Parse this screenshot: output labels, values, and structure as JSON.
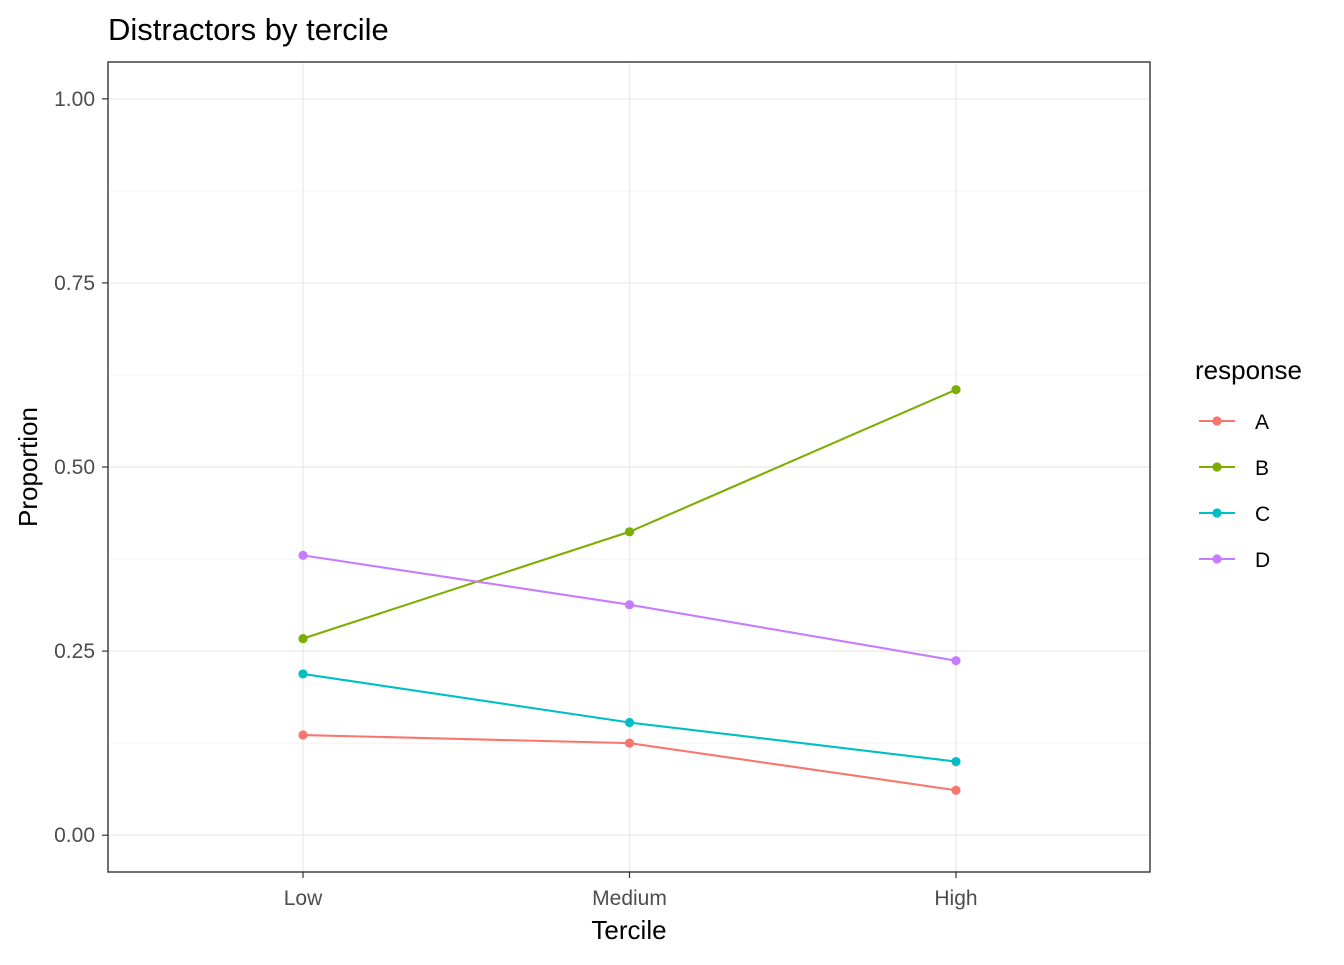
{
  "chart_data": {
    "type": "line",
    "title": "Distractors by tercile",
    "xlabel": "Tercile",
    "ylabel": "Proportion",
    "categories": [
      "Low",
      "Medium",
      "High"
    ],
    "ylim": [
      -0.05,
      1.05
    ],
    "yticks": [
      0.0,
      0.25,
      0.5,
      0.75,
      1.0
    ],
    "ytick_labels": [
      "0.00",
      "0.25",
      "0.50",
      "0.75",
      "1.00"
    ],
    "grid": true,
    "legend": {
      "title": "response",
      "position": "right"
    },
    "series": [
      {
        "name": "A",
        "color": "#F8766D",
        "values": [
          0.136,
          0.125,
          0.061
        ]
      },
      {
        "name": "B",
        "color": "#7CAE00",
        "values": [
          0.267,
          0.412,
          0.605
        ]
      },
      {
        "name": "C",
        "color": "#00BFC4",
        "values": [
          0.219,
          0.153,
          0.1
        ]
      },
      {
        "name": "D",
        "color": "#C77CFF",
        "values": [
          0.38,
          0.313,
          0.237
        ]
      }
    ]
  }
}
